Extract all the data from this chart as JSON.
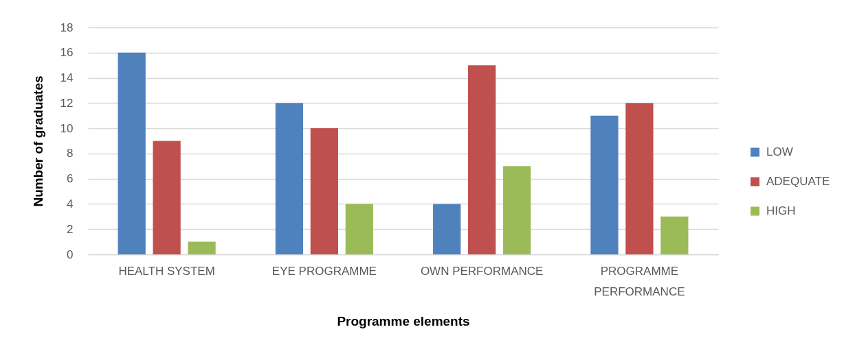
{
  "chart_data": {
    "type": "bar",
    "xlabel": "Programme elements",
    "ylabel": "Number of graduates",
    "categories": [
      "HEALTH SYSTEM",
      "EYE PROGRAMME",
      "OWN PERFORMANCE",
      "PROGRAMME PERFORMANCE"
    ],
    "series": [
      {
        "name": "LOW",
        "color": "#4f81bd",
        "values": [
          16,
          12,
          4,
          11
        ]
      },
      {
        "name": "ADEQUATE",
        "color": "#c0504d",
        "values": [
          9,
          10,
          15,
          12
        ]
      },
      {
        "name": "HIGH",
        "color": "#9bbb59",
        "values": [
          1,
          4,
          7,
          3
        ]
      }
    ],
    "ylim": [
      0,
      18
    ],
    "yticks": [
      0,
      2,
      4,
      6,
      8,
      10,
      12,
      14,
      16,
      18
    ],
    "grid": "y",
    "legend": "right"
  }
}
